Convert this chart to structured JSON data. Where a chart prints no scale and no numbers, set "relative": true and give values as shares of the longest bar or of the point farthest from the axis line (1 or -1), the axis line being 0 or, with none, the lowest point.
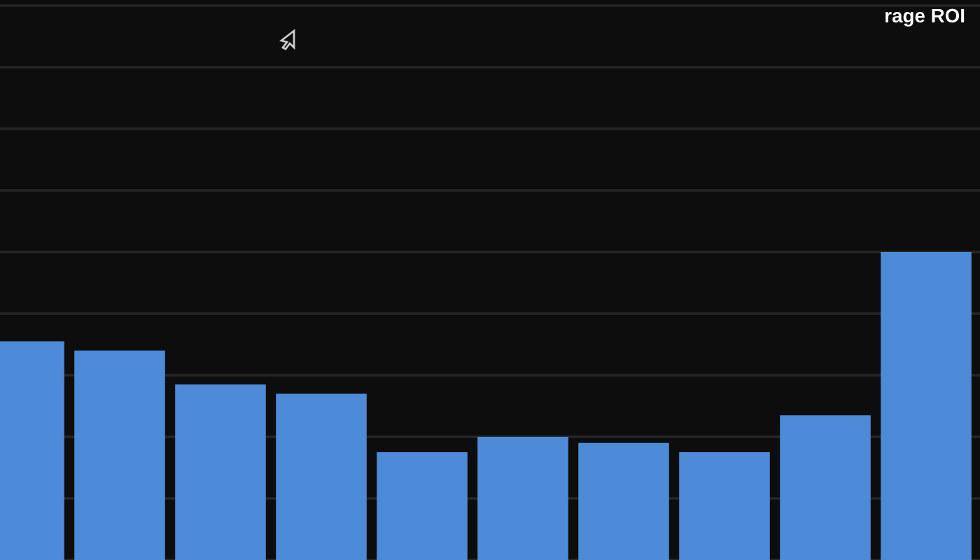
{
  "chart_data": {
    "type": "bar",
    "title": "rage ROI",
    "categories": [
      null,
      null,
      null,
      null,
      null,
      null,
      null,
      null,
      null,
      null
    ],
    "values": [
      0.71,
      0.68,
      0.57,
      0.54,
      0.35,
      0.4,
      0.38,
      0.35,
      0.47,
      1.0
    ],
    "color": "#4d8ad8",
    "relative": true,
    "grid": "y"
  }
}
